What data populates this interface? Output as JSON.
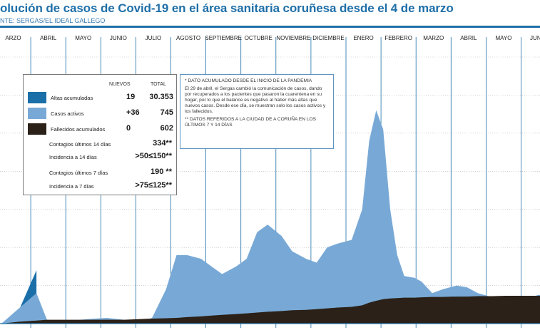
{
  "header": {
    "title": "olución de casos de Covid-19 en el área sanitaria coruñesa desde el 4 de marzo",
    "source": "NTE: SERGAS/EL IDEAL GALLEGO"
  },
  "legend": {
    "col_new": "NUEVOS",
    "col_total": "TOTAL",
    "rows": [
      {
        "label": "Altas acumuladas",
        "new": "19",
        "total": "30.353",
        "color": "#1a6fa8"
      },
      {
        "label": "Casos activos",
        "new": "+36",
        "total": "745",
        "color": "#78a9d6"
      },
      {
        "label": "Fallecidos acumulados",
        "new": "0",
        "total": "602",
        "color": "#2b2118"
      }
    ],
    "lines": [
      {
        "label": "Contagios últimos 14 días",
        "value": "334**"
      },
      {
        "label": "Incidencia a 14 días",
        "value": ">50≤150**"
      },
      {
        "label": "Contagios últimos 7 días",
        "value": "190 **"
      },
      {
        "label": "Incidencia a 7 días",
        "value": ">75≤125**"
      }
    ]
  },
  "note": {
    "line1": "* DATO ACUMULADO DESDE EL INICIO DE LA PANDEMIA",
    "line2": "El 29 de abril, el Sergas cambió la comunicación de casos, dando por recuperados a los pacientes que pasaron la cuarentena en su hogar, por lo que el balance es negativo al haber más altas que nuevos casos. Desde ese día, se muestran solo los casos activos y los fallecidos.",
    "line3": "** DATOS REFERIDOS A LA CIUDAD DE A CORUÑA EN LOS ÚLTIMOS 7 Y 14 DÍAS"
  },
  "chart_data": {
    "type": "area",
    "categories": [
      "ARZO",
      "ABRIL",
      "MAYO",
      "JUNIO",
      "JULIO",
      "AGOSTO",
      "SEPTIEMBRE",
      "OCTUBRE",
      "NOVIEMBRE",
      "DICIEMBRE",
      "ENERO",
      "FEBRERO",
      "MARZO",
      "ABRIL",
      "MAYO",
      "JUNIO"
    ],
    "x_unit": "month index (0 = marzo 2020)",
    "x": [
      0,
      0.5,
      1.0,
      1.3,
      1.6,
      2.0,
      2.5,
      3.0,
      3.5,
      4.0,
      4.3,
      4.7,
      5.0,
      5.3,
      5.7,
      6.0,
      6.3,
      6.7,
      7.0,
      7.3,
      7.6,
      8.0,
      8.3,
      8.7,
      9.0,
      9.3,
      9.6,
      10.0,
      10.3,
      10.5,
      10.7,
      10.9,
      11.1,
      11.3,
      11.5,
      11.8,
      12.0,
      12.3,
      12.6,
      13.0,
      13.3,
      13.6,
      14.0,
      14.4,
      14.7,
      15.0,
      15.3,
      15.5
    ],
    "series": [
      {
        "name": "Altas acumuladas",
        "color": "#1a6fa8",
        "values": [
          0,
          35,
          140,
          null,
          null,
          null,
          null,
          null,
          null,
          null,
          null,
          null,
          null,
          null,
          null,
          null,
          null,
          null,
          null,
          null,
          null,
          null,
          null,
          null,
          null,
          null,
          null,
          null,
          null,
          null,
          null,
          null,
          null,
          null,
          null,
          null,
          null,
          null,
          null,
          null,
          null,
          null,
          null,
          null,
          null,
          null,
          null,
          null
        ]
      },
      {
        "name": "Casos activos",
        "color": "#78a9d6",
        "values": [
          0,
          40,
          80,
          10,
          5,
          8,
          12,
          15,
          10,
          5,
          15,
          90,
          180,
          180,
          170,
          150,
          130,
          150,
          170,
          240,
          260,
          230,
          190,
          170,
          160,
          200,
          210,
          220,
          300,
          480,
          560,
          510,
          300,
          180,
          125,
          120,
          110,
          80,
          90,
          100,
          95,
          80,
          70,
          50,
          40,
          55,
          75,
          75
        ]
      },
      {
        "name": "Fallecidos acumulados",
        "color": "#2b2118",
        "values": [
          0,
          5,
          8,
          10,
          10,
          10,
          10,
          10,
          10,
          12,
          13,
          14,
          15,
          17,
          19,
          21,
          23,
          25,
          27,
          29,
          31,
          33,
          35,
          36,
          38,
          40,
          42,
          44,
          48,
          55,
          60,
          64,
          66,
          67,
          68,
          68,
          69,
          70,
          70,
          71,
          71,
          72,
          72,
          73,
          73,
          73,
          73,
          73
        ]
      }
    ],
    "ylim": [
      0,
      700
    ],
    "grid": true
  }
}
